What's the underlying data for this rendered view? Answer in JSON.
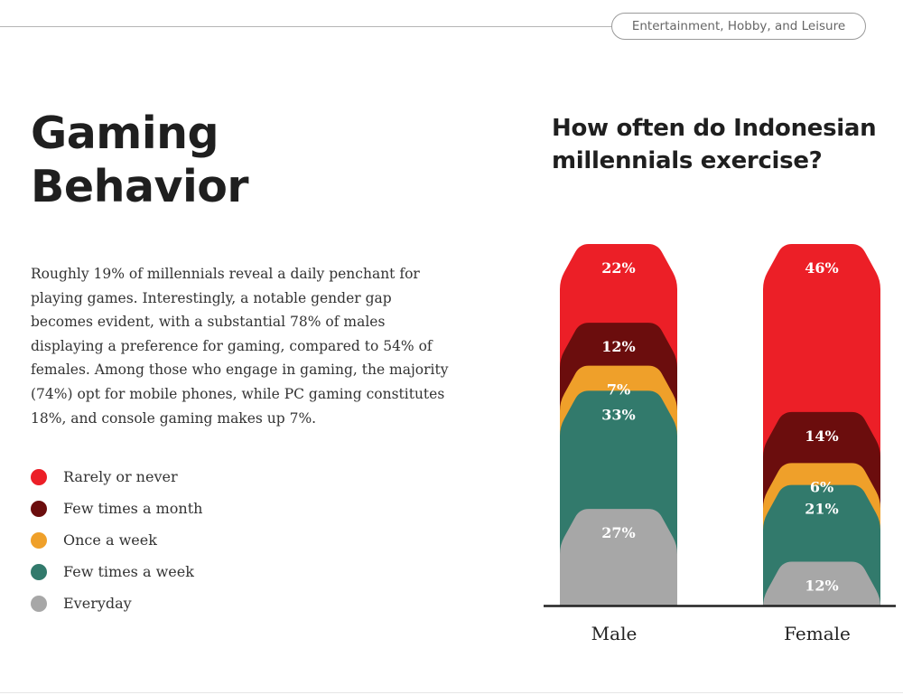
{
  "header": {
    "category": "Entertainment, Hobby, and Leisure"
  },
  "page": {
    "title": "Gaming Behavior",
    "body": "Roughly 19% of millennials reveal a daily penchant for playing games. Interestingly, a notable gender gap becomes evident, with a substantial 78% of males displaying a preference for gaming, compared to 54% of females. Among those who engage in gaming, the majority (74%) opt for mobile phones, while PC gaming constitutes 18%, and console gaming makes up 7%."
  },
  "legend": [
    {
      "label": "Rarely or never",
      "color": "#ec1f27"
    },
    {
      "label": "Few times a month",
      "color": "#6b0d0d"
    },
    {
      "label": "Once a week",
      "color": "#efa02a"
    },
    {
      "label": "Few times a week",
      "color": "#327a6c"
    },
    {
      "label": "Everyday",
      "color": "#a7a7a7"
    }
  ],
  "chart_data": {
    "type": "bar",
    "stacked": true,
    "title": "How often do Indonesian millennials exercise?",
    "categories": [
      "Male",
      "Female"
    ],
    "series": [
      {
        "name": "Rarely or never",
        "color": "#ec1f27",
        "values": [
          22,
          46
        ],
        "labels": [
          "22%",
          "46%"
        ]
      },
      {
        "name": "Few times a month",
        "color": "#6b0d0d",
        "values": [
          12,
          14
        ],
        "labels": [
          "12%",
          "14%"
        ]
      },
      {
        "name": "Once a week",
        "color": "#efa02a",
        "values": [
          7,
          6
        ],
        "labels": [
          "7%",
          "6%"
        ]
      },
      {
        "name": "Few times a week",
        "color": "#327a6c",
        "values": [
          33,
          21
        ],
        "labels": [
          "33%",
          "21%"
        ]
      },
      {
        "name": "Everyday",
        "color": "#a7a7a7",
        "values": [
          27,
          12
        ],
        "labels": [
          "27%",
          "12%"
        ]
      }
    ],
    "ylim": [
      0,
      100
    ],
    "grid": false,
    "legend_position": "left"
  }
}
